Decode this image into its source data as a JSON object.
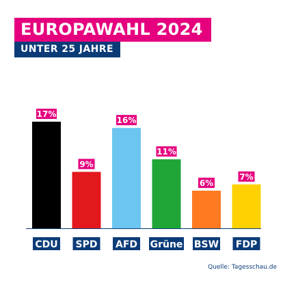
{
  "header": {
    "title": "EUROPAWAHL 2024",
    "subtitle": "UNTER 25 JAHRE"
  },
  "colors": {
    "title_bg": "#e5007e",
    "subtitle_bg": "#0c3c78",
    "value_label_bg": "#e5007e",
    "category_label_bg": "#0c3c78",
    "axis_line": "#0c3c78"
  },
  "chart_data": {
    "type": "bar",
    "categories": [
      "CDU",
      "SPD",
      "AFD",
      "Grüne",
      "BSW",
      "FDP"
    ],
    "values": [
      17,
      9,
      16,
      11,
      6,
      7
    ],
    "value_labels": [
      "17%",
      "9%",
      "16%",
      "11%",
      "6%",
      "7%"
    ],
    "bar_colors": [
      "#000000",
      "#e3171e",
      "#6cc5f0",
      "#1fa637",
      "#ff7a21",
      "#ffd100"
    ],
    "ylim": [
      0,
      17
    ],
    "grid": false,
    "legend": "none"
  },
  "footer": {
    "source": "Quelle: Tagesschau.de"
  }
}
